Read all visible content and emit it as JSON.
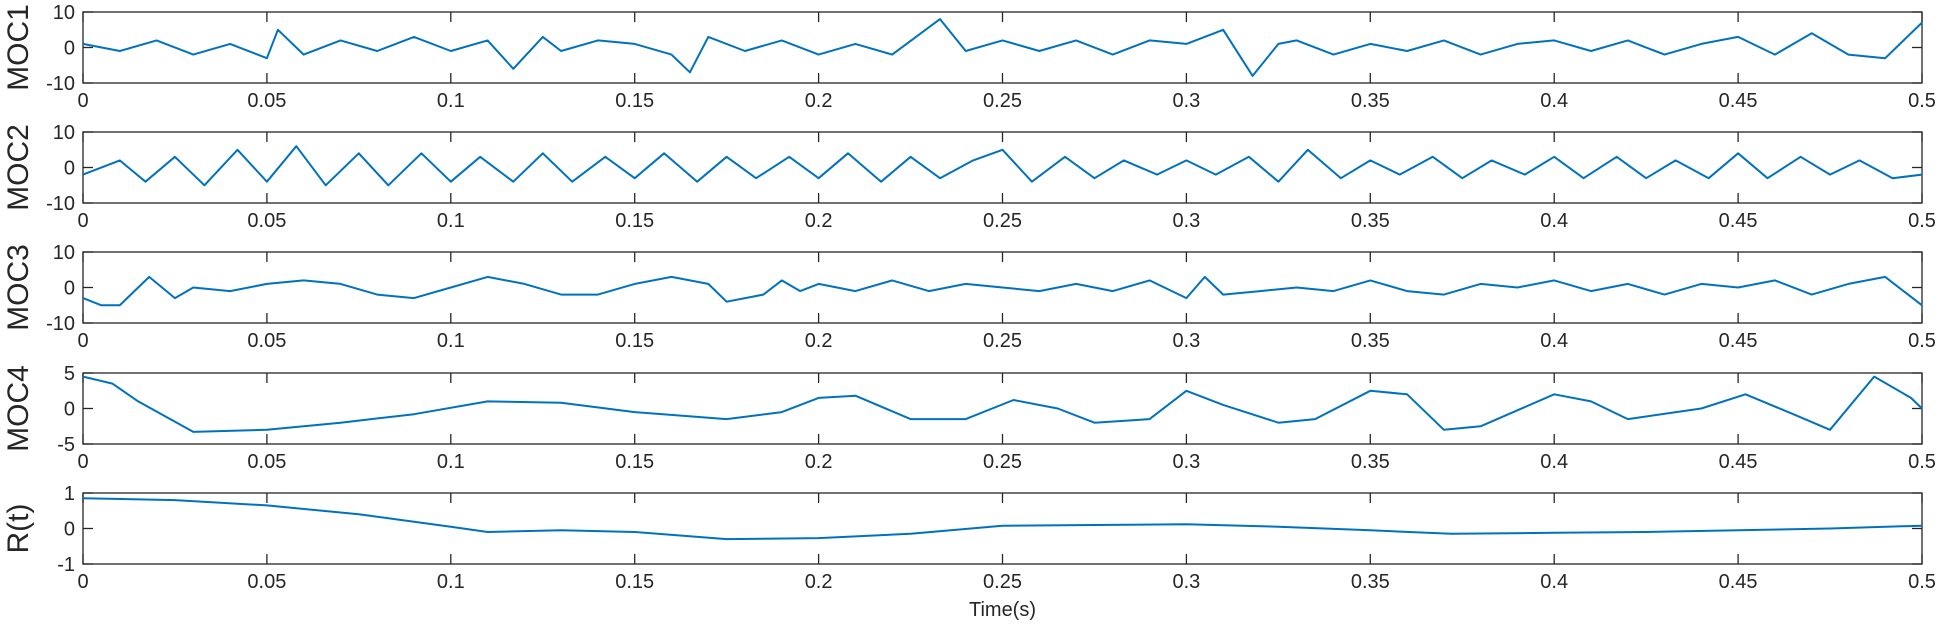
{
  "chart_data": [
    {
      "type": "line",
      "ylabel": "MOC1",
      "xlim": [
        0,
        0.5
      ],
      "ylim": [
        -10,
        10
      ],
      "xticks": [
        "0",
        "0.05",
        "0.1",
        "0.15",
        "0.2",
        "0.25",
        "0.3",
        "0.35",
        "0.4",
        "0.45",
        "0.5"
      ],
      "yticks": [
        "-10",
        "0",
        "10"
      ],
      "ytick_values": [
        -10,
        0,
        10
      ],
      "series": [
        {
          "name": "MOC1",
          "x": [
            0,
            0.01,
            0.02,
            0.03,
            0.04,
            0.05,
            0.053,
            0.06,
            0.07,
            0.08,
            0.09,
            0.1,
            0.11,
            0.117,
            0.125,
            0.13,
            0.14,
            0.15,
            0.16,
            0.165,
            0.17,
            0.18,
            0.19,
            0.2,
            0.21,
            0.22,
            0.233,
            0.24,
            0.25,
            0.26,
            0.27,
            0.28,
            0.29,
            0.3,
            0.31,
            0.318,
            0.325,
            0.33,
            0.34,
            0.35,
            0.36,
            0.37,
            0.38,
            0.39,
            0.4,
            0.41,
            0.42,
            0.43,
            0.44,
            0.45,
            0.46,
            0.47,
            0.48,
            0.49,
            0.5
          ],
          "y": [
            1,
            -1,
            2,
            -2,
            1,
            -3,
            5,
            -2,
            2,
            -1,
            3,
            -1,
            2,
            -6,
            3,
            -1,
            2,
            1,
            -2,
            -7,
            3,
            -1,
            2,
            -2,
            1,
            -2,
            8,
            -1,
            2,
            -1,
            2,
            -2,
            2,
            1,
            5,
            -8,
            1,
            2,
            -2,
            1,
            -1,
            2,
            -2,
            1,
            2,
            -1,
            2,
            -2,
            1,
            3,
            -2,
            4,
            -2,
            -3,
            7
          ]
        }
      ]
    },
    {
      "type": "line",
      "ylabel": "MOC2",
      "xlim": [
        0,
        0.5
      ],
      "ylim": [
        -10,
        10
      ],
      "xticks": [
        "0",
        "0.05",
        "0.1",
        "0.15",
        "0.2",
        "0.25",
        "0.3",
        "0.35",
        "0.4",
        "0.45",
        "0.5"
      ],
      "yticks": [
        "-10",
        "0",
        "10"
      ],
      "ytick_values": [
        -10,
        0,
        10
      ],
      "series": [
        {
          "name": "MOC2",
          "x": [
            0,
            0.01,
            0.017,
            0.025,
            0.033,
            0.042,
            0.05,
            0.058,
            0.066,
            0.075,
            0.083,
            0.092,
            0.1,
            0.108,
            0.117,
            0.125,
            0.133,
            0.142,
            0.15,
            0.158,
            0.167,
            0.175,
            0.183,
            0.192,
            0.2,
            0.208,
            0.217,
            0.225,
            0.233,
            0.242,
            0.25,
            0.258,
            0.267,
            0.275,
            0.283,
            0.292,
            0.3,
            0.308,
            0.317,
            0.325,
            0.333,
            0.342,
            0.35,
            0.358,
            0.367,
            0.375,
            0.383,
            0.392,
            0.4,
            0.408,
            0.417,
            0.425,
            0.433,
            0.442,
            0.45,
            0.458,
            0.467,
            0.475,
            0.483,
            0.492,
            0.5
          ],
          "y": [
            -2,
            2,
            -4,
            3,
            -5,
            5,
            -4,
            6,
            -5,
            4,
            -5,
            4,
            -4,
            3,
            -4,
            4,
            -4,
            3,
            -3,
            4,
            -4,
            3,
            -3,
            3,
            -3,
            4,
            -4,
            3,
            -3,
            2,
            5,
            -4,
            3,
            -3,
            2,
            -2,
            2,
            -2,
            3,
            -4,
            5,
            -3,
            2,
            -2,
            3,
            -3,
            2,
            -2,
            3,
            -3,
            3,
            -3,
            2,
            -3,
            4,
            -3,
            3,
            -2,
            2,
            -3,
            -2
          ]
        }
      ]
    },
    {
      "type": "line",
      "ylabel": "MOC3",
      "xlim": [
        0,
        0.5
      ],
      "ylim": [
        -10,
        10
      ],
      "xticks": [
        "0",
        "0.05",
        "0.1",
        "0.15",
        "0.2",
        "0.25",
        "0.3",
        "0.35",
        "0.4",
        "0.45",
        "0.5"
      ],
      "yticks": [
        "-10",
        "0",
        "10"
      ],
      "ytick_values": [
        -10,
        0,
        10
      ],
      "series": [
        {
          "name": "MOC3",
          "x": [
            0,
            0.005,
            0.01,
            0.013,
            0.018,
            0.025,
            0.03,
            0.04,
            0.05,
            0.06,
            0.07,
            0.08,
            0.09,
            0.1,
            0.11,
            0.12,
            0.13,
            0.14,
            0.15,
            0.16,
            0.17,
            0.175,
            0.185,
            0.19,
            0.195,
            0.2,
            0.21,
            0.22,
            0.23,
            0.24,
            0.25,
            0.26,
            0.27,
            0.28,
            0.29,
            0.3,
            0.305,
            0.31,
            0.32,
            0.33,
            0.34,
            0.35,
            0.36,
            0.37,
            0.38,
            0.39,
            0.4,
            0.41,
            0.42,
            0.43,
            0.44,
            0.45,
            0.46,
            0.47,
            0.48,
            0.49,
            0.5
          ],
          "y": [
            -3,
            -5,
            -5,
            -2,
            3,
            -3,
            0,
            -1,
            1,
            2,
            1,
            -2,
            -3,
            0,
            3,
            1,
            -2,
            -2,
            1,
            3,
            1,
            -4,
            -2,
            2,
            -1,
            1,
            -1,
            2,
            -1,
            1,
            0,
            -1,
            1,
            -1,
            2,
            -3,
            3,
            -2,
            -1,
            0,
            -1,
            2,
            -1,
            -2,
            1,
            0,
            2,
            -1,
            1,
            -2,
            1,
            0,
            2,
            -2,
            1,
            3,
            -5
          ]
        }
      ]
    },
    {
      "type": "line",
      "ylabel": "MOC4",
      "xlim": [
        0,
        0.5
      ],
      "ylim": [
        -5,
        5
      ],
      "xticks": [
        "0",
        "0.05",
        "0.1",
        "0.15",
        "0.2",
        "0.25",
        "0.3",
        "0.35",
        "0.4",
        "0.45",
        "0.5"
      ],
      "yticks": [
        "-5",
        "0",
        "5"
      ],
      "ytick_values": [
        -5,
        0,
        5
      ],
      "series": [
        {
          "name": "MOC4",
          "x": [
            0,
            0.008,
            0.015,
            0.03,
            0.05,
            0.07,
            0.09,
            0.11,
            0.13,
            0.15,
            0.175,
            0.19,
            0.2,
            0.21,
            0.225,
            0.24,
            0.253,
            0.265,
            0.275,
            0.29,
            0.3,
            0.31,
            0.325,
            0.335,
            0.35,
            0.36,
            0.37,
            0.38,
            0.4,
            0.41,
            0.42,
            0.44,
            0.452,
            0.465,
            0.475,
            0.487,
            0.497,
            0.5
          ],
          "y": [
            4.5,
            3.5,
            1,
            -3.3,
            -3,
            -2,
            -0.8,
            1,
            0.8,
            -0.5,
            -1.5,
            -0.5,
            1.5,
            1.8,
            -1.5,
            -1.5,
            1.2,
            0,
            -2,
            -1.5,
            2.5,
            0.5,
            -2,
            -1.5,
            2.5,
            2,
            -3,
            -2.5,
            2,
            1,
            -1.5,
            0,
            2,
            -0.8,
            -3,
            4.5,
            1.5,
            0
          ]
        }
      ]
    },
    {
      "type": "line",
      "ylabel": "R(t)",
      "xlabel": "Time(s)",
      "xlim": [
        0,
        0.5
      ],
      "ylim": [
        -1,
        1
      ],
      "xticks": [
        "0",
        "0.05",
        "0.1",
        "0.15",
        "0.2",
        "0.25",
        "0.3",
        "0.35",
        "0.4",
        "0.45",
        "0.5"
      ],
      "yticks": [
        "-1",
        "0",
        "1"
      ],
      "ytick_values": [
        -1,
        0,
        1
      ],
      "series": [
        {
          "name": "R(t)",
          "x": [
            0,
            0.025,
            0.05,
            0.075,
            0.1,
            0.11,
            0.13,
            0.15,
            0.175,
            0.2,
            0.225,
            0.25,
            0.275,
            0.3,
            0.325,
            0.35,
            0.372,
            0.4,
            0.425,
            0.45,
            0.475,
            0.5
          ],
          "y": [
            0.85,
            0.8,
            0.65,
            0.4,
            0.05,
            -0.1,
            -0.05,
            -0.1,
            -0.3,
            -0.27,
            -0.15,
            0.08,
            0.1,
            0.12,
            0.05,
            -0.05,
            -0.15,
            -0.12,
            -0.1,
            -0.05,
            0,
            0.08
          ]
        }
      ]
    }
  ],
  "colors": {
    "line": "#0072BD",
    "axes": "#262626"
  }
}
